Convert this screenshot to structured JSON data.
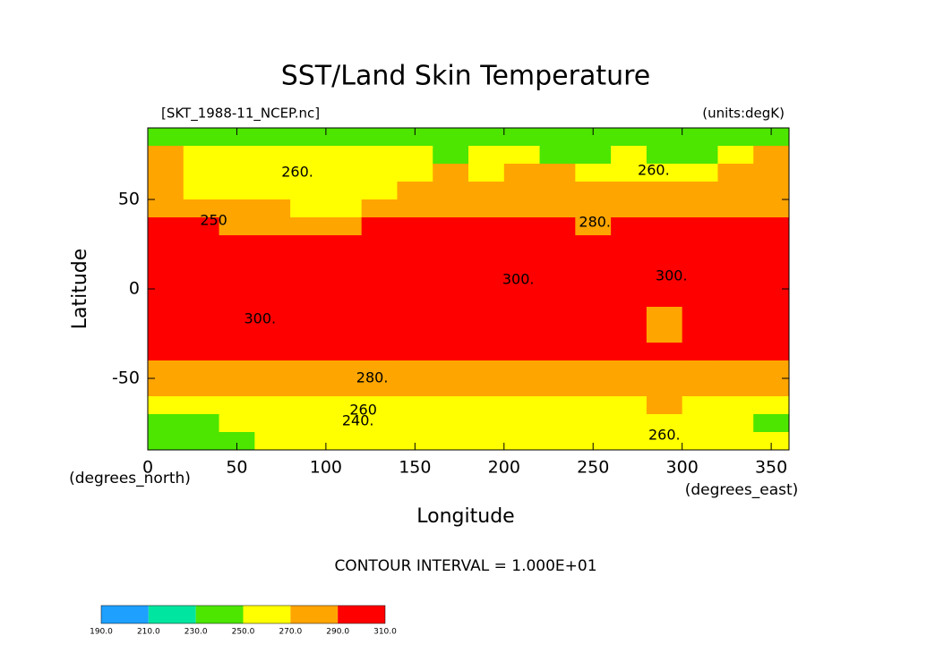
{
  "chart_data": {
    "type": "contour",
    "title": "SST/Land Skin Temperature",
    "file_label": "[SKT_1988-11_NCEP.nc]",
    "units_label": "(units:degK)",
    "xlabel": "Longitude",
    "ylabel": "Latitude",
    "x_unit_label": "(degrees_east)",
    "y_unit_label": "(degrees_north)",
    "contour_interval_label": "CONTOUR INTERVAL = 1.000E+01",
    "xlim": [
      0,
      360
    ],
    "ylim": [
      -90,
      90
    ],
    "xticks": [
      0,
      50,
      100,
      150,
      200,
      250,
      300,
      350
    ],
    "yticks": [
      -50,
      0,
      50
    ],
    "levels": [
      {
        "value": 190,
        "label": "190.0"
      },
      {
        "value": 210,
        "label": "210.0"
      },
      {
        "value": 230,
        "label": "230.0"
      },
      {
        "value": 250,
        "label": "250.0"
      },
      {
        "value": 270,
        "label": "270.0"
      },
      {
        "value": 290,
        "label": "290.0"
      },
      {
        "value": 310,
        "label": "310.0"
      }
    ],
    "colors": [
      "#1ea0ff",
      "#00e6a0",
      "#4ce600",
      "#ffff00",
      "#ffa500",
      "#ff0000"
    ],
    "field": {
      "lon": [
        10,
        30,
        50,
        70,
        90,
        110,
        130,
        150,
        170,
        190,
        210,
        230,
        250,
        270,
        290,
        310,
        330,
        350
      ],
      "lat": [
        85,
        75,
        65,
        55,
        45,
        35,
        25,
        15,
        5,
        -5,
        -15,
        -25,
        -35,
        -45,
        -55,
        -65,
        -75,
        -85
      ],
      "values": [
        [
          248,
          245,
          245,
          245,
          245,
          245,
          245,
          245,
          245,
          245,
          245,
          245,
          245,
          245,
          245,
          245,
          245,
          248
        ],
        [
          275,
          262,
          258,
          262,
          262,
          258,
          255,
          250,
          248,
          252,
          255,
          248,
          248,
          255,
          245,
          240,
          258,
          272
        ],
        [
          272,
          265,
          262,
          262,
          262,
          258,
          262,
          262,
          270,
          268,
          272,
          272,
          262,
          265,
          262,
          268,
          275,
          278
        ],
        [
          278,
          268,
          268,
          265,
          265,
          262,
          268,
          278,
          280,
          280,
          280,
          280,
          272,
          272,
          275,
          280,
          282,
          282
        ],
        [
          288,
          280,
          275,
          272,
          265,
          268,
          278,
          285,
          286,
          286,
          287,
          288,
          280,
          282,
          285,
          288,
          288,
          288
        ],
        [
          292,
          290,
          285,
          280,
          275,
          285,
          292,
          294,
          294,
          294,
          292,
          290,
          288,
          292,
          294,
          295,
          295,
          294
        ],
        [
          300,
          300,
          298,
          300,
          295,
          300,
          300,
          300,
          300,
          300,
          300,
          300,
          300,
          300,
          300,
          300,
          300,
          300
        ],
        [
          300,
          300,
          300,
          300,
          300,
          300,
          300,
          300,
          300,
          300,
          300,
          300,
          300,
          300,
          300,
          300,
          300,
          300
        ],
        [
          300,
          300,
          300,
          300,
          300,
          300,
          300,
          300,
          300,
          300,
          300,
          300,
          300,
          300,
          300,
          300,
          300,
          300
        ],
        [
          300,
          300,
          300,
          300,
          300,
          300,
          300,
          300,
          300,
          300,
          300,
          300,
          300,
          300,
          300,
          300,
          300,
          300
        ],
        [
          300,
          300,
          300,
          300,
          300,
          300,
          300,
          300,
          300,
          300,
          300,
          300,
          300,
          300,
          285,
          300,
          300,
          300
        ],
        [
          300,
          300,
          300,
          300,
          300,
          300,
          298,
          300,
          300,
          300,
          300,
          300,
          300,
          300,
          288,
          300,
          300,
          300
        ],
        [
          292,
          292,
          292,
          292,
          292,
          292,
          292,
          292,
          292,
          292,
          292,
          292,
          292,
          292,
          291,
          292,
          292,
          292
        ],
        [
          283,
          283,
          283,
          283,
          283,
          283,
          283,
          283,
          283,
          283,
          283,
          283,
          283,
          283,
          285,
          283,
          283,
          283
        ],
        [
          278,
          278,
          278,
          278,
          278,
          278,
          278,
          278,
          278,
          278,
          278,
          278,
          278,
          278,
          278,
          278,
          278,
          278
        ],
        [
          268,
          268,
          268,
          268,
          268,
          268,
          268,
          268,
          268,
          268,
          268,
          268,
          268,
          268,
          275,
          268,
          268,
          268
        ],
        [
          245,
          245,
          250,
          255,
          255,
          258,
          255,
          260,
          262,
          262,
          262,
          262,
          262,
          262,
          262,
          262,
          255,
          245
        ],
        [
          248,
          248,
          248,
          250,
          250,
          252,
          255,
          258,
          262,
          262,
          262,
          262,
          262,
          258,
          255,
          252,
          250,
          250
        ]
      ]
    },
    "contour_labels": [
      {
        "x": 84,
        "y": 65,
        "value": 260,
        "label": "260."
      },
      {
        "x": 37,
        "y": 38,
        "value": 250,
        "label": "250"
      },
      {
        "x": 284,
        "y": 66,
        "value": 260,
        "label": "260."
      },
      {
        "x": 251,
        "y": 37,
        "value": 280,
        "label": "280."
      },
      {
        "x": 208,
        "y": 5,
        "value": 300,
        "label": "300."
      },
      {
        "x": 294,
        "y": 7,
        "value": 300,
        "label": "300."
      },
      {
        "x": 63,
        "y": -17,
        "value": 300,
        "label": "300."
      },
      {
        "x": 126,
        "y": -50,
        "value": 280,
        "label": "280."
      },
      {
        "x": 121,
        "y": -68,
        "value": 260,
        "label": "260"
      },
      {
        "x": 118,
        "y": -74,
        "value": 240,
        "label": "240."
      },
      {
        "x": 290,
        "y": -82,
        "value": 260,
        "label": "260."
      }
    ]
  }
}
